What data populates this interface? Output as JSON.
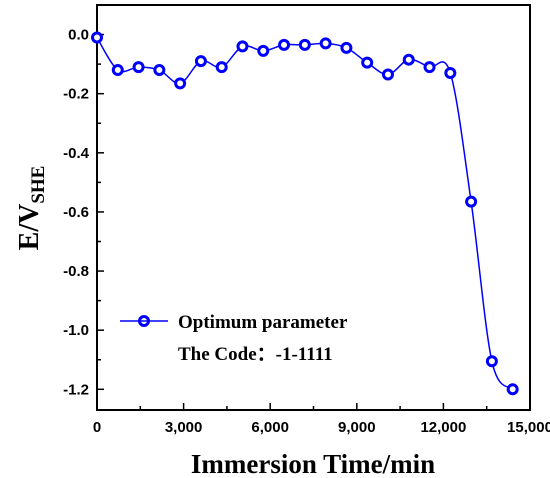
{
  "chart_data": {
    "type": "line",
    "xlabel": "Immersion Time/min",
    "ylabel_main": "E/V",
    "ylabel_sub": "SHE",
    "xlim": [
      0,
      15000
    ],
    "ylim": [
      -1.27,
      0.1
    ],
    "x_ticks": [
      0,
      3000,
      6000,
      9000,
      12000,
      15000
    ],
    "x_tick_labels": [
      "0",
      "3,000",
      "6,000",
      "9,000",
      "12,000",
      "15,000"
    ],
    "y_ticks": [
      0.0,
      -0.2,
      -0.4,
      -0.6,
      -0.8,
      -1.0,
      -1.2
    ],
    "y_tick_labels": [
      "0.0",
      "-0.2",
      "-0.4",
      "-0.6",
      "-0.8",
      "-1.0",
      "-1.2"
    ],
    "grid": false,
    "legend_position": "bottom-left",
    "legend_line1": "Optimum parameter",
    "legend_line2": "The Code：-1-1111",
    "series": [
      {
        "name": "Optimum parameter",
        "color": "#0000ff",
        "x": [
          0,
          720,
          1440,
          2160,
          2880,
          3600,
          4320,
          5040,
          5760,
          6480,
          7200,
          7920,
          8640,
          9360,
          10080,
          10800,
          11520,
          12240,
          12960,
          13680,
          14400
        ],
        "y": [
          -0.01,
          -0.12,
          -0.11,
          -0.12,
          -0.165,
          -0.09,
          -0.11,
          -0.04,
          -0.055,
          -0.035,
          -0.035,
          -0.03,
          -0.045,
          -0.095,
          -0.135,
          -0.085,
          -0.11,
          -0.13,
          -0.565,
          -1.105,
          -1.2
        ]
      }
    ]
  }
}
